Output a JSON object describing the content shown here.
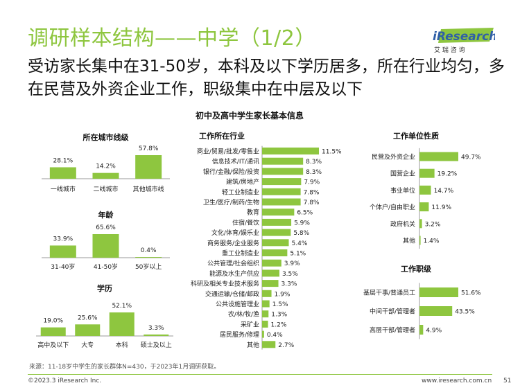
{
  "page": {
    "title": "调研样本结构——中学（1/2）",
    "headline": "受访家长集中在31-50岁，本科及以下学历居多，所在行业均匀，多在民营及外资企业工作，职级集中在中层及以下",
    "subtitle": "初中及高中学生家长基本信息",
    "source": "来源：11-18岁中学生的家长群体N=430，于2023年1月调研获取。",
    "copyright": "©2023.3 iResearch Inc.",
    "website": "www.iresearch.com.cn",
    "page_number": "51"
  },
  "logo": {
    "brand": "iResearch",
    "tagline": "艾 瑞 咨 询"
  },
  "colors": {
    "accent": "#8ec63f",
    "bar": "#8ec63f",
    "axis": "#9a9a9a",
    "text": "#222222"
  },
  "chart_data": [
    {
      "id": "city",
      "type": "bar",
      "title": "所在城市线级",
      "unit": "%",
      "categories": [
        "一线城市",
        "二线城市",
        "其他城市线"
      ],
      "values": [
        28.1,
        14.2,
        57.8
      ],
      "labels": [
        "28.1%",
        "14.2%",
        "57.8%"
      ]
    },
    {
      "id": "age",
      "type": "bar",
      "title": "年龄",
      "unit": "%",
      "categories": [
        "31-40岁",
        "41-50岁",
        "50岁以上"
      ],
      "values": [
        33.9,
        65.6,
        0.4
      ],
      "labels": [
        "33.9%",
        "65.6%",
        "0.4%"
      ]
    },
    {
      "id": "education",
      "type": "bar",
      "title": "学历",
      "unit": "%",
      "categories": [
        "高中及以下",
        "大专",
        "本科",
        "硕士及以上"
      ],
      "values": [
        19.0,
        25.6,
        52.1,
        3.3
      ],
      "labels": [
        "19.0%",
        "25.6%",
        "52.1%",
        "3.3%"
      ]
    },
    {
      "id": "industry",
      "type": "bar",
      "orientation": "horizontal",
      "title": "工作所在行业",
      "unit": "%",
      "categories": [
        "商业/贸易/批发/零售业",
        "信息技术/IT/通讯",
        "银行/金融/保险/投资",
        "建筑/房地产",
        "轻工业制造业",
        "卫生/医疗/制药/生物",
        "教育",
        "住宿/餐饮",
        "文化/体育/娱乐业",
        "商务服务/企业服务",
        "重工业制造业",
        "公共管理/社会组织",
        "能源及水生产供应",
        "科研及相关专业技术服务",
        "交通运输/仓储/邮政",
        "公共设施管理业",
        "农/林/牧/渔",
        "采矿业",
        "居民服务/修理",
        "其他"
      ],
      "values": [
        11.5,
        8.3,
        8.3,
        7.9,
        7.8,
        7.8,
        6.5,
        5.9,
        5.8,
        5.4,
        5.1,
        3.9,
        3.5,
        3.3,
        1.9,
        1.5,
        1.3,
        1.2,
        0.4,
        2.7
      ],
      "labels": [
        "11.5%",
        "8.3%",
        "8.3%",
        "7.9%",
        "7.8%",
        "7.8%",
        "6.5%",
        "5.9%",
        "5.8%",
        "5.4%",
        "5.1%",
        "3.9%",
        "3.5%",
        "3.3%",
        "1.9%",
        "1.5%",
        "1.3%",
        "1.2%",
        "0.4%",
        "2.7%"
      ]
    },
    {
      "id": "employer",
      "type": "bar",
      "orientation": "horizontal",
      "title": "工作单位性质",
      "unit": "%",
      "categories": [
        "民营及外资企业",
        "国营企业",
        "事业单位",
        "个体户/自由职业",
        "政府机关",
        "其他"
      ],
      "values": [
        49.7,
        19.2,
        14.7,
        11.9,
        3.2,
        1.4
      ],
      "labels": [
        "49.7%",
        "19.2%",
        "14.7%",
        "11.9%",
        "3.2%",
        "1.4%"
      ]
    },
    {
      "id": "rank",
      "type": "bar",
      "orientation": "horizontal",
      "title": "工作职级",
      "unit": "%",
      "categories": [
        "基层干事/普通员工",
        "中间干部/管理者",
        "高层干部/管理者"
      ],
      "values": [
        51.6,
        43.5,
        4.9
      ],
      "labels": [
        "51.6%",
        "43.5%",
        "4.9%"
      ]
    }
  ]
}
